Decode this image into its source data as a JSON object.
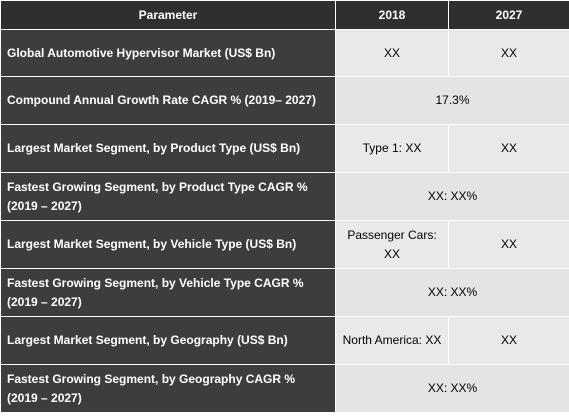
{
  "headers": [
    "Parameter",
    "2018",
    "2027"
  ],
  "rows": [
    {
      "param": "Global Automotive Hypervisor Market (US$ Bn)",
      "v2018": "XX",
      "v2027": "XX"
    },
    {
      "param": "Compound Annual Growth Rate CAGR % (2019– 2027)",
      "merged": "17.3%"
    },
    {
      "param": "Largest Market Segment, by Product Type (US$ Bn)",
      "v2018": "Type 1: XX",
      "v2027": "XX"
    },
    {
      "param": "Fastest Growing Segment, by Product Type CAGR % (2019 – 2027)",
      "merged": "XX: XX%"
    },
    {
      "param": "Largest Market Segment, by Vehicle Type (US$ Bn)",
      "v2018": "Passenger Cars: XX",
      "v2027": "XX"
    },
    {
      "param": "Fastest Growing Segment, by Vehicle Type CAGR % (2019 – 2027)",
      "merged": "XX: XX%"
    },
    {
      "param": "Largest Market Segment, by Geography (US$ Bn)",
      "v2018": "North America: XX",
      "v2027": "XX"
    },
    {
      "param": "Fastest Growing Segment, by Geography CAGR % (2019 – 2027)",
      "merged": "XX: XX%"
    }
  ]
}
